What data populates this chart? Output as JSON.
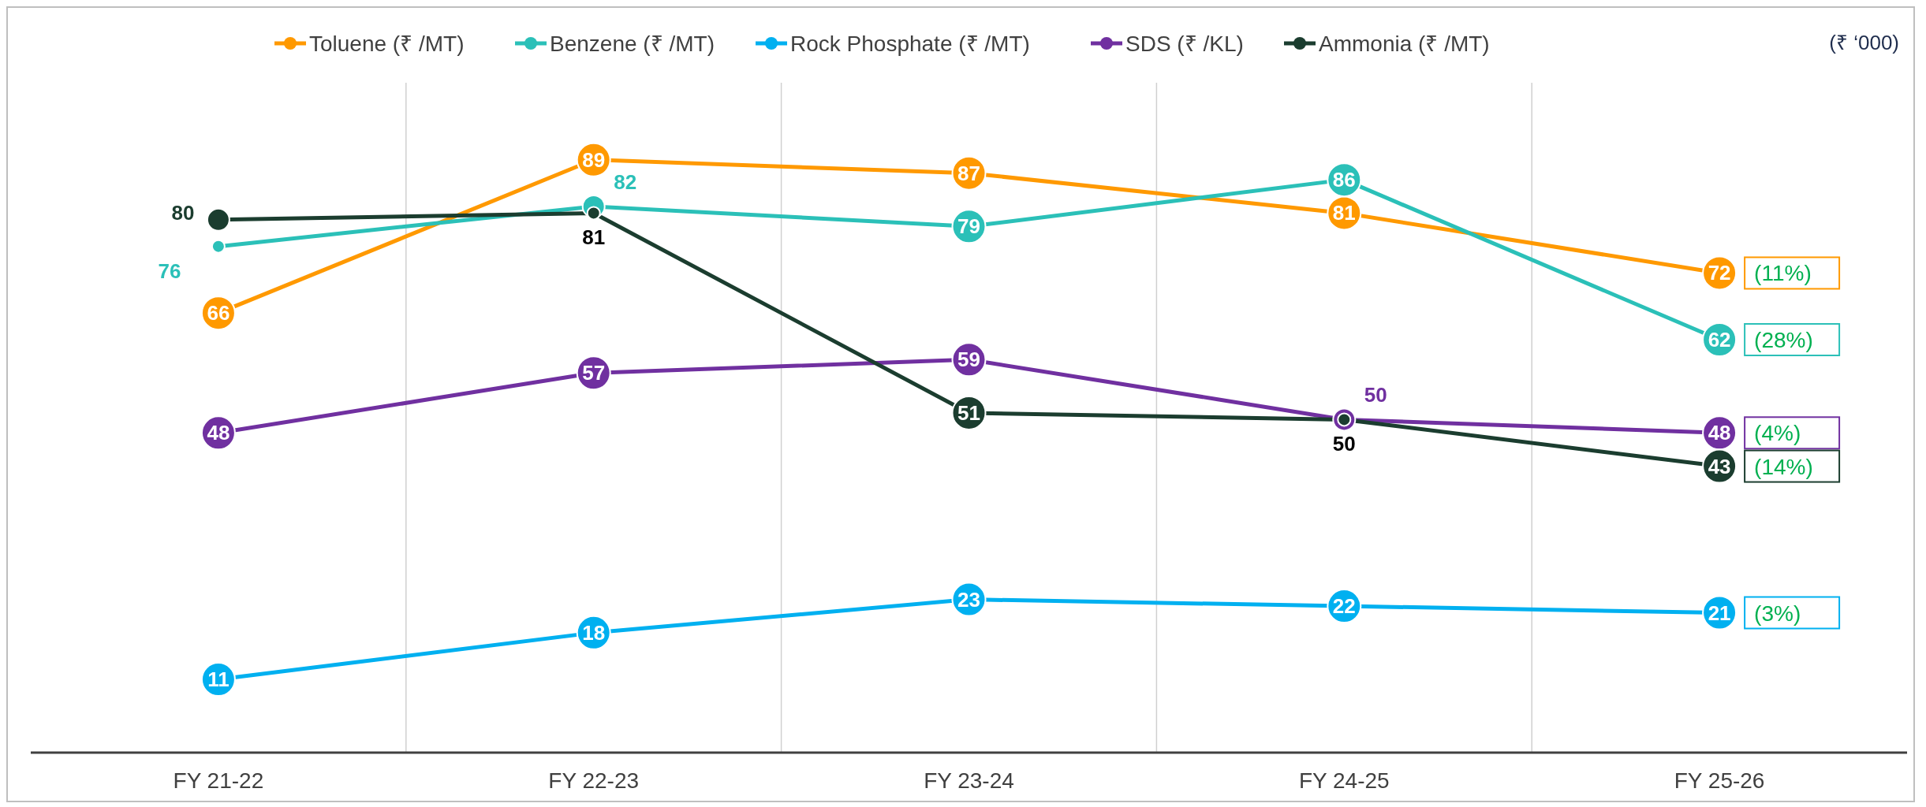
{
  "chart_data": {
    "type": "line",
    "categories": [
      "FY 21-22",
      "FY 22-23",
      "FY 23-24",
      "FY 24-25",
      "FY 25-26"
    ],
    "series": [
      {
        "name": "Toluene (₹ /MT)",
        "color": "#ff9900",
        "values": [
          66,
          89,
          87,
          81,
          72
        ]
      },
      {
        "name": "Benzene (₹ /MT)",
        "color": "#2bc0b8",
        "values": [
          76,
          82,
          79,
          86,
          62
        ]
      },
      {
        "name": "Rock  Phosphate (₹ /MT)",
        "color": "#00b0f0",
        "values": [
          11,
          18,
          23,
          22,
          21
        ]
      },
      {
        "name": "SDS (₹ /KL)",
        "color": "#7030a0",
        "values": [
          48,
          57,
          59,
          50,
          48
        ]
      },
      {
        "name": "Ammonia (₹ /MT)",
        "color": "#1b3d2f",
        "values": [
          80,
          81,
          51,
          50,
          43
        ]
      }
    ],
    "data_labels": true,
    "marker": "circle",
    "grid": "x",
    "legend": "top",
    "annotations": [
      "(₹  ‘000)",
      {
        "text": "(11%)",
        "x": "FY 25-26",
        "y": 72
      },
      {
        "text": "(28%)",
        "x": "FY 25-26",
        "y": 62
      },
      {
        "text": "(4%)",
        "x": "FY 25-26",
        "y": 48
      },
      {
        "text": "(14%)",
        "x": "FY 25-26",
        "y": 43
      },
      {
        "text": "(3%)",
        "x": "FY 25-26",
        "y": 21
      }
    ]
  }
}
